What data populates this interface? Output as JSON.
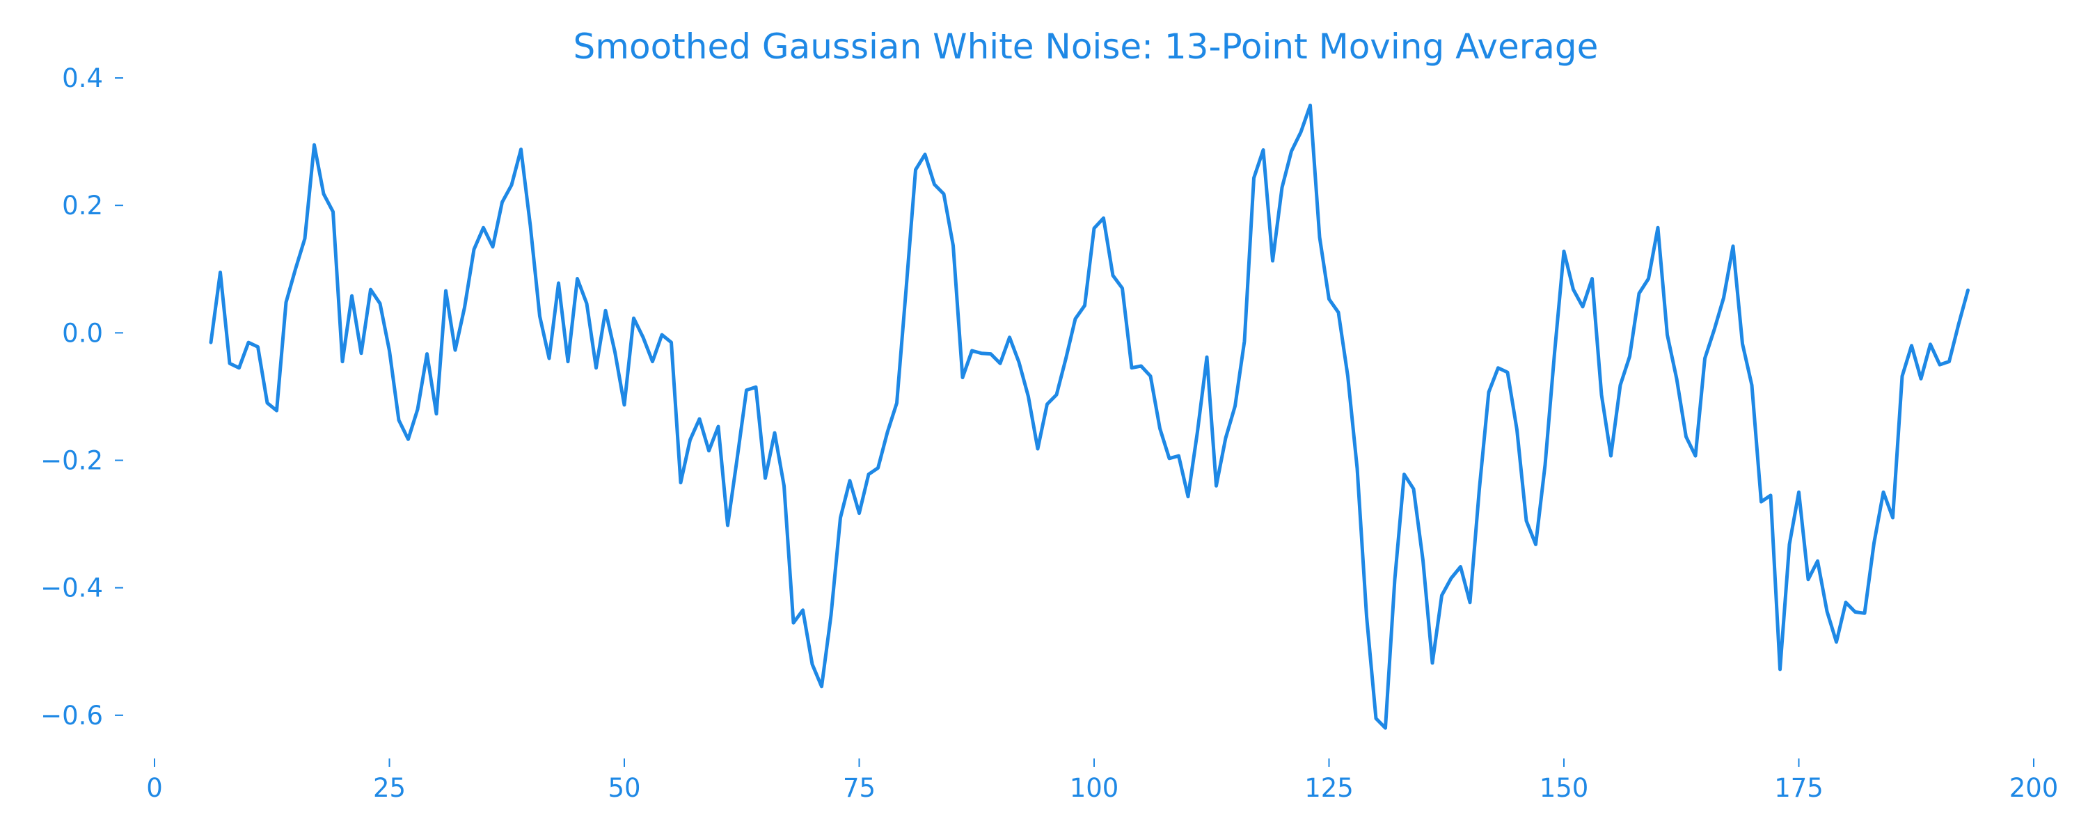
{
  "chart_data": {
    "type": "line",
    "title": "Smoothed Gaussian White Noise: 13-Point Moving Average",
    "xlabel": "",
    "ylabel": "",
    "xlim": [
      0,
      200
    ],
    "ylim": [
      -0.67,
      0.4
    ],
    "xticks": [
      0,
      25,
      50,
      75,
      100,
      125,
      150,
      175,
      200
    ],
    "yticks": [
      -0.6,
      -0.4,
      -0.2,
      0.0,
      0.2,
      0.4
    ],
    "ytick_labels": [
      "−0.6",
      "−0.4",
      "−0.2",
      "0.0",
      "0.2",
      "0.4"
    ],
    "grid": false,
    "legend": "none",
    "color": "#1e88e5",
    "series": [
      {
        "x": [
          6,
          7,
          8,
          9,
          10,
          11,
          12,
          13,
          14,
          15,
          16,
          17,
          18,
          19,
          20,
          21,
          22,
          23,
          24,
          25,
          26,
          27,
          28,
          29,
          30,
          31,
          32,
          33,
          34,
          35,
          36,
          37,
          38,
          39,
          40,
          41,
          42,
          43,
          44,
          45,
          46,
          47,
          48,
          49,
          50,
          51,
          52,
          53,
          54,
          55,
          56,
          57,
          58,
          59,
          60,
          61,
          62,
          63,
          64,
          65,
          66,
          67,
          68,
          69,
          70,
          71,
          72,
          73,
          74,
          75,
          76,
          77,
          78,
          79,
          80,
          81,
          82,
          83,
          84,
          85,
          86,
          87,
          88,
          89,
          90,
          91,
          92,
          93,
          94,
          95,
          96,
          97,
          98,
          99,
          100,
          101,
          102,
          103,
          104,
          105,
          106,
          107,
          108,
          109,
          110,
          111,
          112,
          113,
          114,
          115,
          116,
          117,
          118,
          119,
          120,
          121,
          122,
          123,
          124,
          125,
          126,
          127,
          128,
          129,
          130,
          131,
          132,
          133,
          134,
          135,
          136,
          137,
          138,
          139,
          140,
          141,
          142,
          143,
          144,
          145,
          146,
          147,
          148,
          149,
          150,
          151,
          152,
          153,
          154,
          155,
          156,
          157,
          158,
          159,
          160,
          161,
          162,
          163,
          164,
          165,
          166,
          167,
          168,
          169,
          170,
          171,
          172,
          173,
          174,
          175,
          176,
          177,
          178,
          179,
          180,
          181,
          182,
          183,
          184,
          185,
          186,
          187,
          188,
          189,
          190,
          191,
          192,
          193
        ],
        "y": [
          -0.015,
          0.095,
          -0.048,
          -0.055,
          -0.015,
          -0.022,
          -0.11,
          -0.122,
          0.048,
          0.1,
          0.148,
          0.295,
          0.218,
          0.19,
          -0.045,
          0.058,
          -0.032,
          0.068,
          0.046,
          -0.028,
          -0.137,
          -0.167,
          -0.12,
          -0.033,
          -0.127,
          0.066,
          -0.027,
          0.04,
          0.131,
          0.165,
          0.135,
          0.205,
          0.232,
          0.288,
          0.168,
          0.026,
          -0.04,
          0.078,
          -0.045,
          0.085,
          0.046,
          -0.055,
          0.035,
          -0.03,
          -0.113,
          0.023,
          -0.007,
          -0.045,
          -0.003,
          -0.015,
          -0.235,
          -0.168,
          -0.135,
          -0.185,
          -0.147,
          -0.302,
          -0.198,
          -0.09,
          -0.085,
          -0.228,
          -0.157,
          -0.24,
          -0.455,
          -0.435,
          -0.52,
          -0.555,
          -0.443,
          -0.29,
          -0.232,
          -0.283,
          -0.222,
          -0.212,
          -0.156,
          -0.11,
          0.07,
          0.256,
          0.28,
          0.233,
          0.218,
          0.137,
          -0.07,
          -0.028,
          -0.032,
          -0.033,
          -0.048,
          -0.007,
          -0.046,
          -0.1,
          -0.182,
          -0.112,
          -0.097,
          -0.04,
          0.022,
          0.043,
          0.164,
          0.18,
          0.09,
          0.07,
          -0.055,
          -0.052,
          -0.068,
          -0.15,
          -0.197,
          -0.193,
          -0.257,
          -0.155,
          -0.038,
          -0.24,
          -0.165,
          -0.115,
          -0.013,
          0.243,
          0.287,
          0.113,
          0.228,
          0.285,
          0.315,
          0.357,
          0.15,
          0.053,
          0.032,
          -0.068,
          -0.213,
          -0.445,
          -0.605,
          -0.62,
          -0.387,
          -0.222,
          -0.245,
          -0.357,
          -0.518,
          -0.412,
          -0.385,
          -0.367,
          -0.423,
          -0.245,
          -0.093,
          -0.055,
          -0.062,
          -0.152,
          -0.295,
          -0.332,
          -0.207,
          -0.032,
          0.128,
          0.068,
          0.041,
          0.085,
          -0.097,
          -0.193,
          -0.082,
          -0.037,
          0.062,
          0.085,
          0.165,
          -0.003,
          -0.072,
          -0.163,
          -0.193,
          -0.04,
          0.005,
          0.055,
          0.136,
          -0.017,
          -0.082,
          -0.265,
          -0.255,
          -0.528,
          -0.332,
          -0.25,
          -0.387,
          -0.358,
          -0.437,
          -0.485,
          -0.423,
          -0.438,
          -0.44,
          -0.33,
          -0.25,
          -0.29,
          -0.068,
          -0.02,
          -0.072,
          -0.018,
          -0.05,
          -0.045,
          0.013,
          0.067
        ]
      }
    ]
  }
}
